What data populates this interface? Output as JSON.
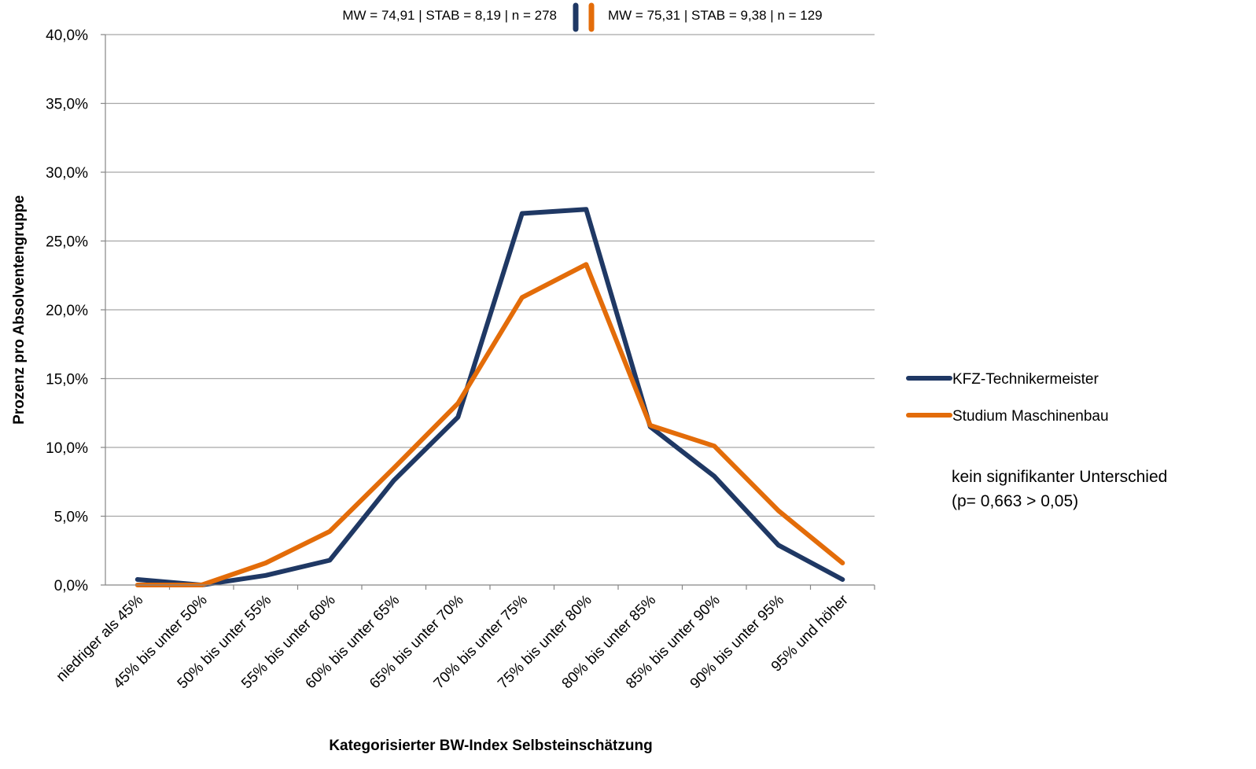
{
  "colors": {
    "series_1": "#1f3864",
    "series_2": "#e36c09",
    "grid": "#a6a6a6"
  },
  "stats": {
    "series_1": "MW = 74,91 | STAB = 8,19 | n = 278",
    "series_2": "MW = 75,31 | STAB = 9,38 | n = 129"
  },
  "note": {
    "line1": "kein signifikanter Unterschied",
    "line2": "(p= 0,663 > 0,05)"
  },
  "chart_data": {
    "type": "line",
    "title": "",
    "xlabel": "Kategorisierter BW-Index Selbsteinschätzung",
    "ylabel": "Prozenz pro Absolventengruppe",
    "ylim": [
      0,
      40
    ],
    "y_ticks": [
      {
        "value": 0,
        "label": "0,0%"
      },
      {
        "value": 5,
        "label": "5,0%"
      },
      {
        "value": 10,
        "label": "10,0%"
      },
      {
        "value": 15,
        "label": "15,0%"
      },
      {
        "value": 20,
        "label": "20,0%"
      },
      {
        "value": 25,
        "label": "25,0%"
      },
      {
        "value": 30,
        "label": "30,0%"
      },
      {
        "value": 35,
        "label": "35,0%"
      },
      {
        "value": 40,
        "label": "40,0%"
      }
    ],
    "categories": [
      "niedriger als 45%",
      "45% bis unter 50%",
      "50% bis unter 55%",
      "55% bis unter 60%",
      "60% bis unter 65%",
      "65% bis unter 70%",
      "70% bis unter 75%",
      "75% bis unter 80%",
      "80% bis unter 85%",
      "85% bis unter 90%",
      "90% bis unter 95%",
      "95% und höher"
    ],
    "series": [
      {
        "name": "KFZ-Technikermeister",
        "color": "#1f3864",
        "values": [
          0.4,
          0.0,
          0.7,
          1.8,
          7.6,
          12.2,
          27.0,
          27.3,
          11.5,
          7.9,
          2.9,
          0.4
        ]
      },
      {
        "name": "Studium Maschinenbau",
        "color": "#e36c09",
        "values": [
          0.0,
          0.0,
          1.6,
          3.9,
          8.5,
          13.2,
          20.9,
          23.3,
          11.6,
          10.1,
          5.4,
          1.6
        ]
      }
    ],
    "grid": true,
    "legend_position": "right"
  }
}
